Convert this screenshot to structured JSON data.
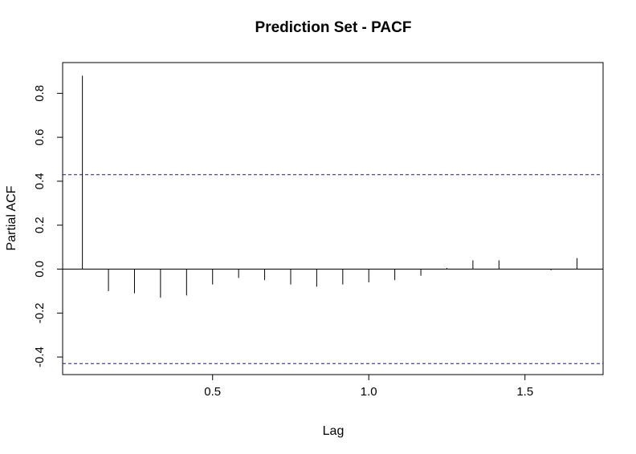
{
  "chart_data": {
    "type": "bar",
    "title": "Prediction Set - PACF",
    "xlabel": "Lag",
    "ylabel": "Partial ACF",
    "xlim": [
      0.02,
      1.75
    ],
    "ylim": [
      -0.48,
      0.94
    ],
    "x_ticks": [
      0.5,
      1.0,
      1.5
    ],
    "x_tick_labels": [
      "0.5",
      "1.0",
      "1.5"
    ],
    "y_ticks": [
      -0.4,
      -0.2,
      0.0,
      0.2,
      0.4,
      0.6,
      0.8
    ],
    "y_tick_labels": [
      "-0.4",
      "-0.2",
      "0.0",
      "0.2",
      "0.4",
      "0.6",
      "0.8"
    ],
    "confidence_bound": 0.43,
    "lags": [
      0.0833,
      0.1667,
      0.25,
      0.3333,
      0.4167,
      0.5,
      0.5833,
      0.6667,
      0.75,
      0.8333,
      0.9167,
      1.0,
      1.0833,
      1.1667,
      1.25,
      1.3333,
      1.4167,
      1.5,
      1.5833,
      1.6667
    ],
    "values": [
      0.88,
      -0.1,
      -0.11,
      -0.13,
      -0.12,
      -0.07,
      -0.04,
      -0.05,
      -0.07,
      -0.08,
      -0.07,
      -0.06,
      -0.05,
      -0.03,
      0.005,
      0.04,
      0.04,
      0.0,
      -0.005,
      0.05
    ],
    "grid": false
  }
}
